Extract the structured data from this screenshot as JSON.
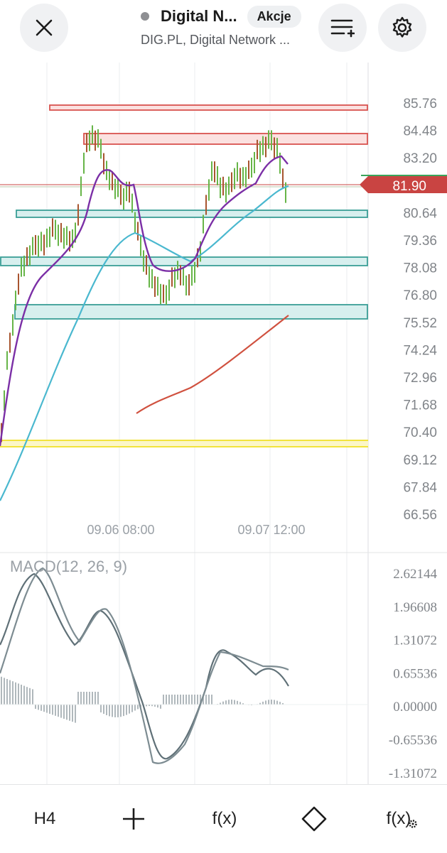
{
  "header": {
    "close_icon": "close-icon",
    "instrument_name": "Digital N...",
    "badge": "Akcje",
    "subtitle": "DIG.PL, Digital Network ...",
    "watchlist_icon": "list-add-icon",
    "settings_icon": "gear-icon",
    "status_dot_color": "#8e8f93"
  },
  "price_axis": {
    "labels": [
      "85.76",
      "84.48",
      "83.20",
      "81.90",
      "80.64",
      "79.36",
      "78.08",
      "76.80",
      "75.52",
      "74.24",
      "72.96",
      "71.68",
      "70.40",
      "69.12",
      "67.84",
      "66.56"
    ],
    "current_price": "81.90",
    "current_price_color": "#c94442"
  },
  "time_axis": {
    "labels": [
      "09.06 08:00",
      "09.07 12:00"
    ]
  },
  "macd": {
    "title": "MACD(12, 26, 9)",
    "labels": [
      "2.62144",
      "1.96608",
      "1.31072",
      "0.65536",
      "0.00000",
      "-0.65536",
      "-1.31072"
    ]
  },
  "toolbar": {
    "timeframe": "H4",
    "crosshair_icon": "crosshair-icon",
    "indicators": "f(x)",
    "drawing_icon": "diamond-icon",
    "indicator_settings": "f(x)"
  },
  "colors": {
    "resistance": "#d9534f",
    "support": "#3a9e96",
    "support_fill": "#d7efee",
    "yellow_line": "#f2e33c",
    "ema_purple": "#7b2fa6",
    "ema_blue": "#4ab8cf",
    "ema_red": "#d0513f",
    "candles": "#67b548",
    "macd_line": "#5f7077"
  }
}
